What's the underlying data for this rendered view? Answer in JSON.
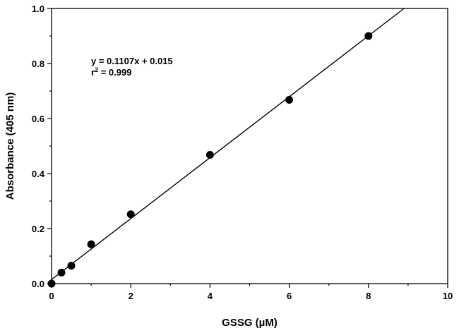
{
  "chart_data": {
    "type": "scatter",
    "title": "",
    "xlabel": "GSSG (µM)",
    "ylabel": "Absorbance (405 nm)",
    "xlim": [
      0,
      10
    ],
    "ylim": [
      0,
      1.0
    ],
    "x_ticks": [
      0,
      2,
      4,
      6,
      8,
      10
    ],
    "y_ticks": [
      0.0,
      0.2,
      0.4,
      0.6,
      0.8,
      1.0
    ],
    "x_tick_labels": [
      "0",
      "2",
      "4",
      "6",
      "8",
      "10"
    ],
    "y_tick_labels": [
      "0.0",
      "0.2",
      "0.4",
      "0.6",
      "0.8",
      "1.0"
    ],
    "grid": false,
    "legend": "none",
    "points": [
      {
        "x": 0,
        "y": 0.0
      },
      {
        "x": 0.25,
        "y": 0.04
      },
      {
        "x": 0.5,
        "y": 0.065
      },
      {
        "x": 1,
        "y": 0.143
      },
      {
        "x": 2,
        "y": 0.252
      },
      {
        "x": 4,
        "y": 0.468
      },
      {
        "x": 6,
        "y": 0.668
      },
      {
        "x": 8,
        "y": 0.9
      }
    ],
    "fit_line": {
      "slope": 0.1107,
      "intercept": 0.015
    },
    "annotation": {
      "equation": "y = 0.1107x + 0.015",
      "r2_prefix": "r",
      "r2_sup": "2",
      "r2_suffix": " = 0.999"
    },
    "colors": {
      "marker": "#000000",
      "line": "#000000",
      "axis": "#000000"
    }
  }
}
